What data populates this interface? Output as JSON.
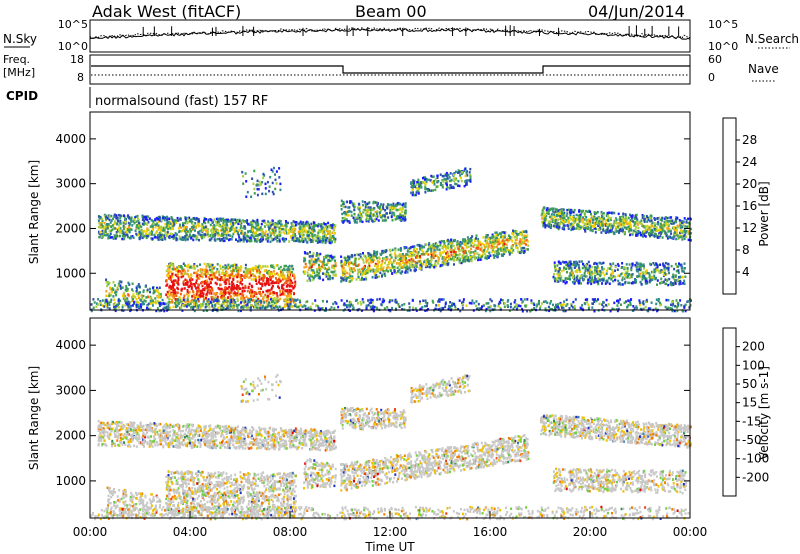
{
  "header": {
    "station": "Adak West (fitACF)",
    "beam": "Beam 00",
    "date": "04/Jun/2014"
  },
  "top_panels": {
    "nsky_label": "N.Sky",
    "nsearch_label": "N.Search",
    "nsky_ticks": [
      "10^5",
      "10^0"
    ],
    "nsearch_ticks": [
      "10^5",
      "10^0"
    ],
    "freq_label_1": "Freq.",
    "freq_label_2": "[MHz]",
    "freq_ticks": [
      "18",
      "8"
    ],
    "nave_label": "Nave",
    "nave_ticks": [
      "60",
      "0"
    ],
    "cpid_label": "CPID",
    "cpid_text": "normalsound (fast) 157 RF"
  },
  "chart_data": [
    {
      "type": "heatmap",
      "name": "power",
      "ylabel": "Slant Range [km]",
      "xlabel": "",
      "x_range_hours": [
        0,
        24
      ],
      "y_range_km": [
        180,
        4600
      ],
      "y_ticks": [
        "1000",
        "2000",
        "3000",
        "4000"
      ],
      "colorbar": {
        "label": "Power [dB]",
        "ticks": [
          "4",
          "8",
          "12",
          "16",
          "20",
          "24",
          "28"
        ],
        "colors": [
          "#1a1aff",
          "#2a4fb0",
          "#2f8a8a",
          "#3fa050",
          "#a8d040",
          "#f0d000",
          "#f5a020",
          "#f06010",
          "#e81010"
        ]
      }
    },
    {
      "type": "heatmap",
      "name": "velocity",
      "ylabel": "Slant Range [km]",
      "xlabel": "Time UT",
      "x_range_hours": [
        0,
        24
      ],
      "y_range_km": [
        180,
        4600
      ],
      "y_ticks": [
        "1000",
        "2000",
        "3000",
        "4000"
      ],
      "x_ticks": [
        "00:00",
        "04:00",
        "08:00",
        "12:00",
        "16:00",
        "20:00",
        "00:00"
      ],
      "colorbar": {
        "label": "Velocity [m s-1]",
        "ticks": [
          "200",
          "100",
          "50",
          "15",
          "-15",
          "-50",
          "-100",
          "-200"
        ],
        "colors": [
          "#2030c0",
          "#3a7ab0",
          "#2f8f50",
          "#70d040",
          "#c8c8c8",
          "#f0c000",
          "#f08000",
          "#f04010",
          "#e80000"
        ]
      }
    }
  ]
}
